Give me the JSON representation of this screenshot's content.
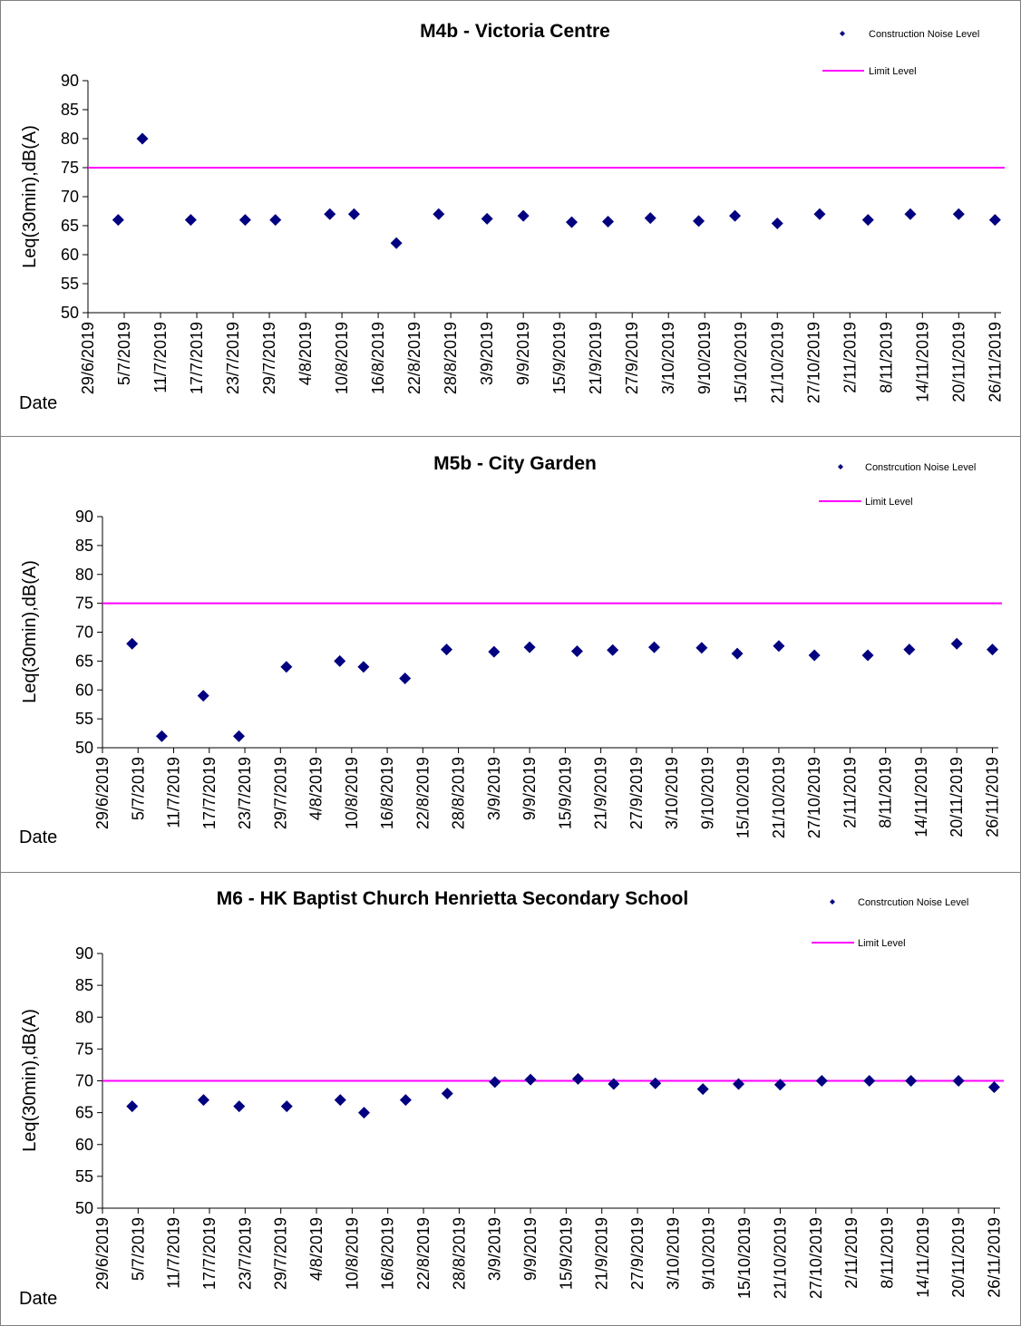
{
  "x_tick_labels": [
    "29/6/2019",
    "5/7/2019",
    "11/7/2019",
    "17/7/2019",
    "23/7/2019",
    "29/7/2019",
    "4/8/2019",
    "10/8/2019",
    "16/8/2019",
    "22/8/2019",
    "28/8/2019",
    "3/9/2019",
    "9/9/2019",
    "15/9/2019",
    "21/9/2019",
    "27/9/2019",
    "3/10/2019",
    "9/10/2019",
    "15/10/2019",
    "21/10/2019",
    "27/10/2019",
    "2/11/2019",
    "8/11/2019",
    "14/11/2019",
    "20/11/2019",
    "26/11/2019"
  ],
  "chart_data": [
    {
      "type": "scatter",
      "title": "M4b - Victoria Centre",
      "ylabel": "Leq(30min),dB(A)",
      "xlabel": "Date",
      "ylim": [
        50,
        90
      ],
      "y_ticks": [
        50,
        55,
        60,
        65,
        70,
        75,
        80,
        85,
        90
      ],
      "xlim": [
        "29/6/2019",
        "27/11/2019"
      ],
      "legend_position": "top-right",
      "series": [
        {
          "name": "Construction Noise Level",
          "marker": "diamond",
          "color": "#000080",
          "points": [
            {
              "x": "4/7/2019",
              "y": 66
            },
            {
              "x": "8/7/2019",
              "y": 80
            },
            {
              "x": "16/7/2019",
              "y": 66
            },
            {
              "x": "25/7/2019",
              "y": 66
            },
            {
              "x": "30/7/2019",
              "y": 66
            },
            {
              "x": "8/8/2019",
              "y": 67
            },
            {
              "x": "12/8/2019",
              "y": 67
            },
            {
              "x": "19/8/2019",
              "y": 62
            },
            {
              "x": "26/8/2019",
              "y": 67
            },
            {
              "x": "3/9/2019",
              "y": 66.2
            },
            {
              "x": "9/9/2019",
              "y": 66.7
            },
            {
              "x": "17/9/2019",
              "y": 65.6
            },
            {
              "x": "23/9/2019",
              "y": 65.7
            },
            {
              "x": "30/9/2019",
              "y": 66.3
            },
            {
              "x": "8/10/2019",
              "y": 65.8
            },
            {
              "x": "14/10/2019",
              "y": 66.7
            },
            {
              "x": "21/10/2019",
              "y": 65.4
            },
            {
              "x": "28/10/2019",
              "y": 67
            },
            {
              "x": "5/11/2019",
              "y": 66
            },
            {
              "x": "12/11/2019",
              "y": 67
            },
            {
              "x": "20/11/2019",
              "y": 67
            },
            {
              "x": "26/11/2019",
              "y": 66
            }
          ]
        },
        {
          "name": "Limit Level",
          "type": "line",
          "color": "#ff00ff",
          "value": 75
        }
      ]
    },
    {
      "type": "scatter",
      "title": "M5b - City Garden",
      "ylabel": "Leq(30min),dB(A)",
      "xlabel": "Date",
      "ylim": [
        50,
        90
      ],
      "y_ticks": [
        50,
        55,
        60,
        65,
        70,
        75,
        80,
        85,
        90
      ],
      "xlim": [
        "29/6/2019",
        "27/11/2019"
      ],
      "legend_position": "top-right",
      "series": [
        {
          "name": "Constrcution Noise Level",
          "marker": "diamond",
          "color": "#000080",
          "points": [
            {
              "x": "4/7/2019",
              "y": 68
            },
            {
              "x": "9/7/2019",
              "y": 52
            },
            {
              "x": "16/7/2019",
              "y": 59
            },
            {
              "x": "22/7/2019",
              "y": 52
            },
            {
              "x": "30/7/2019",
              "y": 64
            },
            {
              "x": "8/8/2019",
              "y": 65
            },
            {
              "x": "12/8/2019",
              "y": 64
            },
            {
              "x": "19/8/2019",
              "y": 62
            },
            {
              "x": "26/8/2019",
              "y": 67
            },
            {
              "x": "3/9/2019",
              "y": 66.6
            },
            {
              "x": "9/9/2019",
              "y": 67.4
            },
            {
              "x": "17/9/2019",
              "y": 66.7
            },
            {
              "x": "23/9/2019",
              "y": 66.9
            },
            {
              "x": "30/9/2019",
              "y": 67.4
            },
            {
              "x": "8/10/2019",
              "y": 67.3
            },
            {
              "x": "14/10/2019",
              "y": 66.3
            },
            {
              "x": "21/10/2019",
              "y": 67.6
            },
            {
              "x": "27/10/2019",
              "y": 66
            },
            {
              "x": "5/11/2019",
              "y": 66
            },
            {
              "x": "12/11/2019",
              "y": 67
            },
            {
              "x": "20/11/2019",
              "y": 68
            },
            {
              "x": "26/11/2019",
              "y": 67
            }
          ]
        },
        {
          "name": "Limit Level",
          "type": "line",
          "color": "#ff00ff",
          "value": 75
        }
      ]
    },
    {
      "type": "scatter",
      "title": "M6 - HK Baptist Church Henrietta Secondary School",
      "ylabel": "Leq(30min),dB(A)",
      "xlabel": "Date",
      "ylim": [
        50,
        90
      ],
      "y_ticks": [
        50,
        55,
        60,
        65,
        70,
        75,
        80,
        85,
        90
      ],
      "xlim": [
        "29/6/2019",
        "27/11/2019"
      ],
      "legend_position": "top-right",
      "series": [
        {
          "name": "Constrcution Noise Level",
          "marker": "diamond",
          "color": "#000080",
          "points": [
            {
              "x": "4/7/2019",
              "y": 66
            },
            {
              "x": "16/7/2019",
              "y": 67
            },
            {
              "x": "22/7/2019",
              "y": 66
            },
            {
              "x": "30/7/2019",
              "y": 66
            },
            {
              "x": "8/8/2019",
              "y": 67
            },
            {
              "x": "12/8/2019",
              "y": 65
            },
            {
              "x": "19/8/2019",
              "y": 67
            },
            {
              "x": "26/8/2019",
              "y": 68
            },
            {
              "x": "3/9/2019",
              "y": 69.8
            },
            {
              "x": "9/9/2019",
              "y": 70.2
            },
            {
              "x": "17/9/2019",
              "y": 70.3
            },
            {
              "x": "23/9/2019",
              "y": 69.5
            },
            {
              "x": "30/9/2019",
              "y": 69.6
            },
            {
              "x": "8/10/2019",
              "y": 68.7
            },
            {
              "x": "14/10/2019",
              "y": 69.5
            },
            {
              "x": "21/10/2019",
              "y": 69.4
            },
            {
              "x": "28/10/2019",
              "y": 70
            },
            {
              "x": "5/11/2019",
              "y": 70
            },
            {
              "x": "12/11/2019",
              "y": 70
            },
            {
              "x": "20/11/2019",
              "y": 70
            },
            {
              "x": "26/11/2019",
              "y": 69
            }
          ]
        },
        {
          "name": "Limit Level",
          "type": "line",
          "color": "#ff00ff",
          "value": 70
        }
      ]
    }
  ]
}
